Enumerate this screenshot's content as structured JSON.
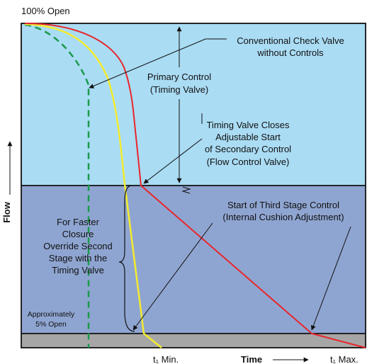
{
  "labels": {
    "top_open": "100% Open",
    "conventional_line1": "Conventional Check Valve",
    "conventional_line2": "without Controls",
    "primary_line1": "Primary Control",
    "primary_line2": "(Timing Valve)",
    "timing_line1": "Timing Valve Closes",
    "timing_line2": "Adjustable Start",
    "timing_line3": "of Secondary Control",
    "timing_line4": "(Flow Control Valve)",
    "third_line1": "Start of Third Stage Control",
    "third_line2": "(Internal Cushion Adjustment)",
    "faster_line1": "For Faster",
    "faster_line2": "Closure",
    "faster_line3": "Override Second",
    "faster_line4": "Stage with the",
    "faster_line5": "Timing Valve",
    "approx_line1": "Approximately",
    "approx_line2": "5% Open",
    "flow_axis": "Flow",
    "time_axis": "Time",
    "t1_min": "t₁ Min.",
    "t1_max": "t₁ Max."
  },
  "colors": {
    "primary_zone": "#aadcf4",
    "secondary_zone": "#8fa5d1",
    "final_zone": "#a6a6a6",
    "red_curve": "#e8262b",
    "yellow_curve": "#f3ec2e",
    "green_curve": "#1a9a4a"
  }
}
